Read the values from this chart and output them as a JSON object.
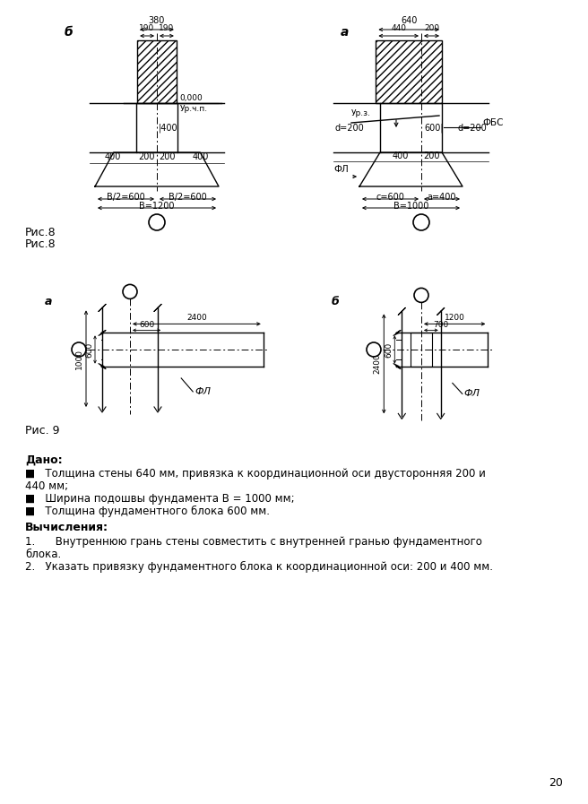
{
  "bg_color": "#ffffff",
  "page_num": "20",
  "fig8_label": "Рис.8",
  "fig9_label": "Рис. 9",
  "dado_title": "Дано:",
  "vych_title": "Вычисления:",
  "dado_lines": [
    "■   Толщина стены 640 мм, привязка к координационной оси двусторонняя 200 и",
    "440 мм;",
    "■   Ширина подошвы фундамента B = 1000 мм;",
    "■   Толщина фундаментного блока 600 мм."
  ],
  "vych_lines": [
    "1.      Внутреннюю грань стены совместить с внутренней гранью фундаментного",
    "блока.",
    "2.   Указать привязку фундаментного блока к координационной оси: 200 и 400 мм."
  ]
}
